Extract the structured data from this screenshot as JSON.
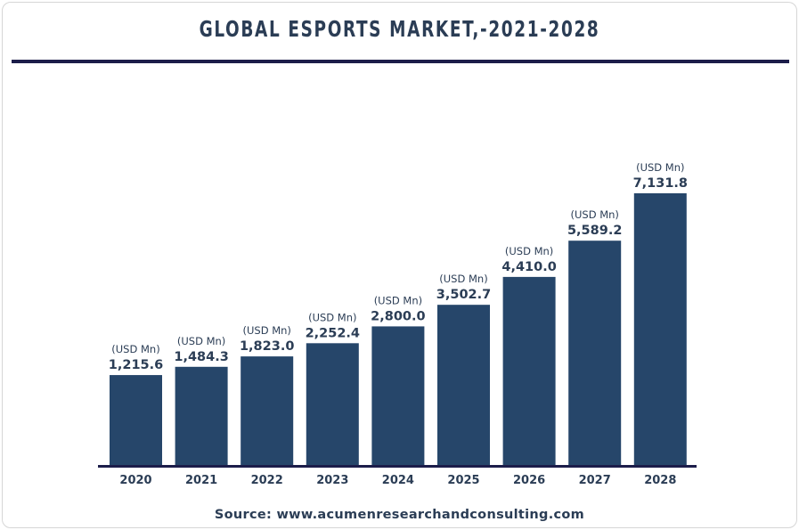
{
  "chart_data": {
    "type": "bar",
    "title": "GLOBAL ESPORTS MARKET,-2021-2028",
    "categories": [
      "2020",
      "2021",
      "2022",
      "2023",
      "2024",
      "2025",
      "2026",
      "2027",
      "2028"
    ],
    "values": [
      1215.6,
      1484.3,
      1823.0,
      2252.4,
      2800.0,
      3502.7,
      4410.0,
      5589.2,
      7131.8
    ],
    "data_labels": [
      "1,215.6",
      "1,484.3",
      "1,823.0",
      "2,252.4",
      "2,800.0",
      "3,502.7",
      "4,410.0",
      "5,589.2",
      "7,131.8"
    ],
    "unit_label": "(USD Mn)",
    "xlabel": "",
    "ylabel": "",
    "ylim": [
      0,
      7131.8
    ],
    "grid": false,
    "colors": {
      "bar": "#26466a",
      "title": "#2b3d55",
      "rule": "#1c1d4a",
      "axis": "#1c1d4a"
    }
  },
  "source": "Source: www.acumenresearchandconsulting.com"
}
